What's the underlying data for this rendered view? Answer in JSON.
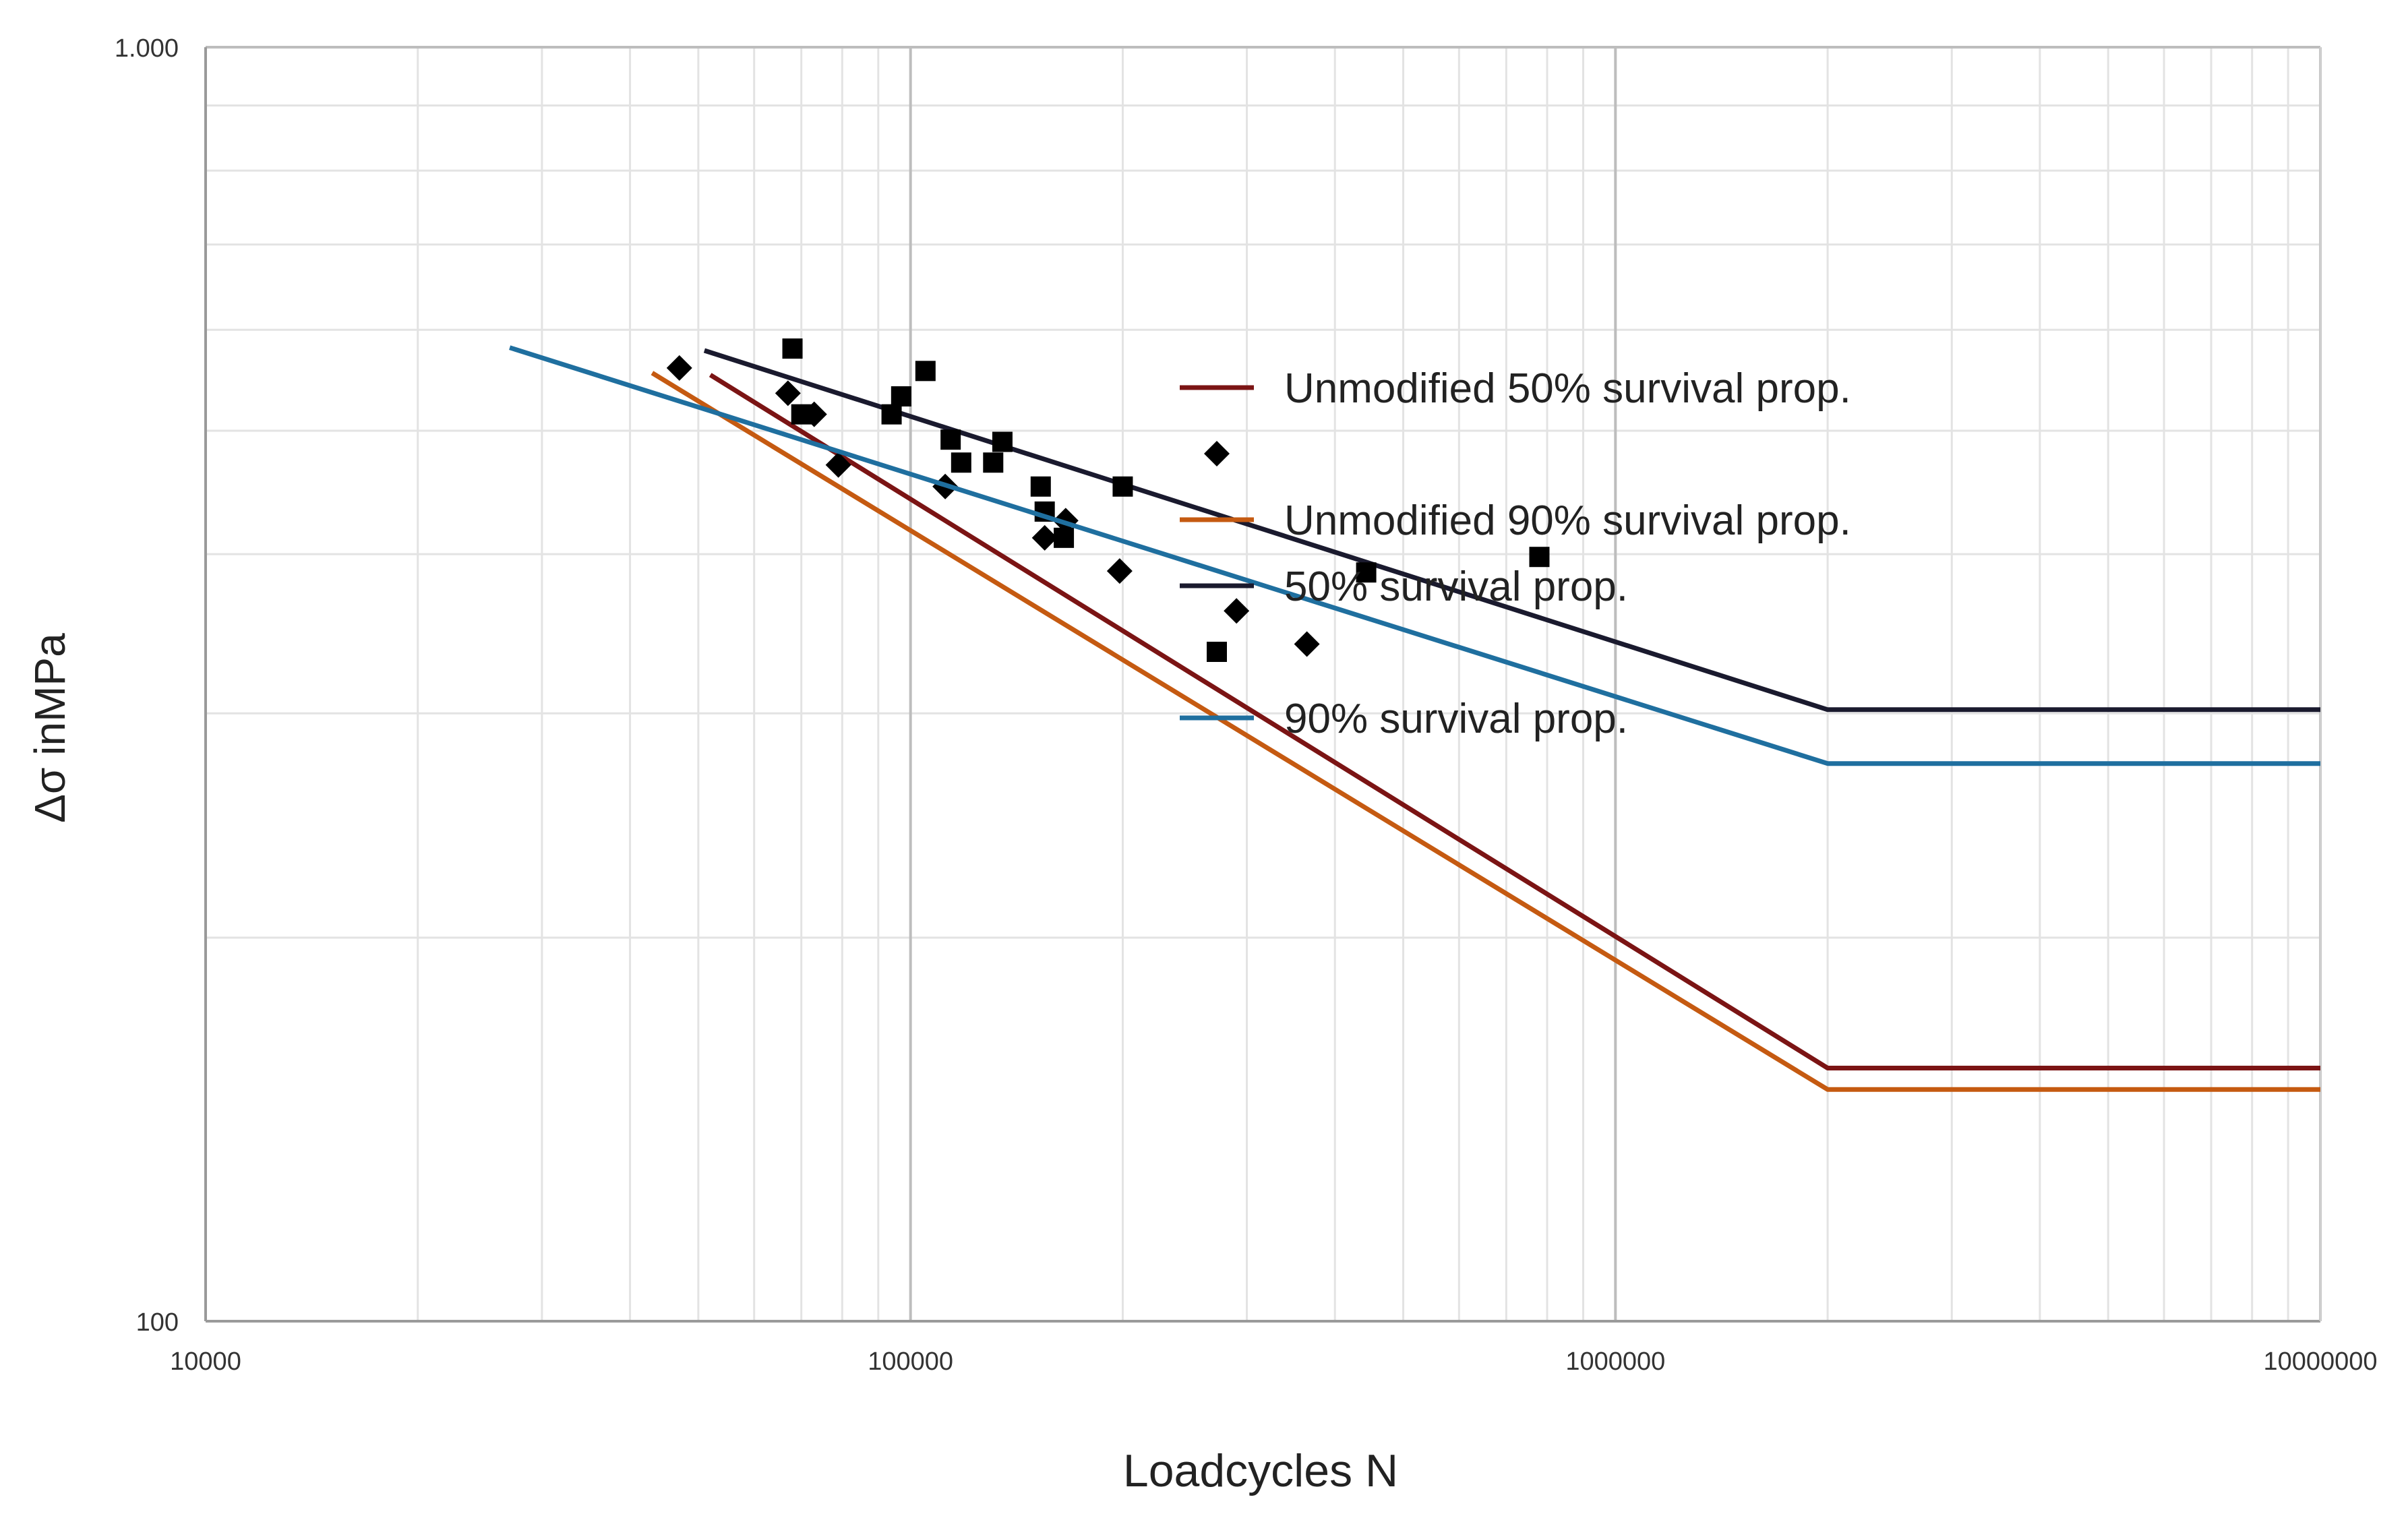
{
  "chart_data": {
    "type": "line",
    "title": "",
    "xlabel": "Loadcycles N",
    "ylabel": "Δσ inMPa",
    "xscale": "log",
    "yscale": "log",
    "xlim": [
      10000,
      10000000
    ],
    "ylim": [
      100,
      1000
    ],
    "x_ticks": [
      10000,
      100000,
      1000000,
      10000000
    ],
    "x_tick_labels": [
      "10000",
      "100000",
      "1000000",
      "10000000"
    ],
    "y_ticks": [
      100,
      1000
    ],
    "y_tick_labels": [
      "100",
      "1.000"
    ],
    "y_minor_gridlines": [
      200,
      300,
      400,
      500,
      600,
      700,
      800,
      900
    ],
    "grid": true,
    "legend_position": "upper-right",
    "series": [
      {
        "name": "Unmodified 50% survival prop.",
        "kind": "line",
        "color": "#7b1414",
        "points": [
          [
            52000,
            553
          ],
          [
            2000000,
            158
          ],
          [
            10000000,
            158
          ]
        ]
      },
      {
        "name": "Unmodified 50% survival prop.",
        "kind": "scatter",
        "marker": "diamond",
        "color": "#000000",
        "points": [
          [
            47000,
            560
          ],
          [
            67000,
            535
          ],
          [
            73000,
            515
          ],
          [
            79000,
            470
          ],
          [
            112000,
            452
          ],
          [
            155000,
            412
          ],
          [
            166000,
            425
          ],
          [
            198000,
            388
          ],
          [
            290000,
            361
          ],
          [
            365000,
            340
          ]
        ]
      },
      {
        "name": "Unmodified 90% survival prop.",
        "kind": "line",
        "color": "#c55a11",
        "points": [
          [
            43000,
            555
          ],
          [
            2000000,
            152
          ],
          [
            10000000,
            152
          ]
        ]
      },
      {
        "name": "50% survival prop.",
        "kind": "line",
        "color": "#1a1a2e",
        "points": [
          [
            51000,
            578
          ],
          [
            2000000,
            302
          ],
          [
            10000000,
            302
          ]
        ]
      },
      {
        "name": "90% survival prop.",
        "kind": "scatter",
        "marker": "square",
        "color": "#000000",
        "points": [
          [
            68000,
            580
          ],
          [
            70000,
            515
          ],
          [
            94000,
            515
          ],
          [
            97000,
            532
          ],
          [
            105000,
            557
          ],
          [
            114000,
            492
          ],
          [
            118000,
            472
          ],
          [
            131000,
            472
          ],
          [
            135000,
            490
          ],
          [
            153000,
            452
          ],
          [
            155000,
            432
          ],
          [
            165000,
            412
          ],
          [
            200000,
            452
          ],
          [
            443000,
            387
          ],
          [
            780000,
            398
          ]
        ]
      },
      {
        "name": "90% survival prop.",
        "kind": "line",
        "color": "#1f6f9f",
        "points": [
          [
            27000,
            581
          ],
          [
            2000000,
            274
          ],
          [
            10000000,
            274
          ]
        ]
      }
    ],
    "legend": [
      {
        "label": "Unmodified 50% survival prop.",
        "symbol": "line",
        "color": "#7b1414"
      },
      {
        "label": "",
        "symbol": "diamond",
        "color": "#000000"
      },
      {
        "label": "Unmodified 90% survival prop.",
        "symbol": "line",
        "color": "#c55a11"
      },
      {
        "label": "50% survival prop.",
        "symbol": "line",
        "color": "#1a1a2e"
      },
      {
        "label": "",
        "symbol": "square",
        "color": "#000000"
      },
      {
        "label": "90% survival prop.",
        "symbol": "line",
        "color": "#1f6f9f"
      }
    ]
  }
}
